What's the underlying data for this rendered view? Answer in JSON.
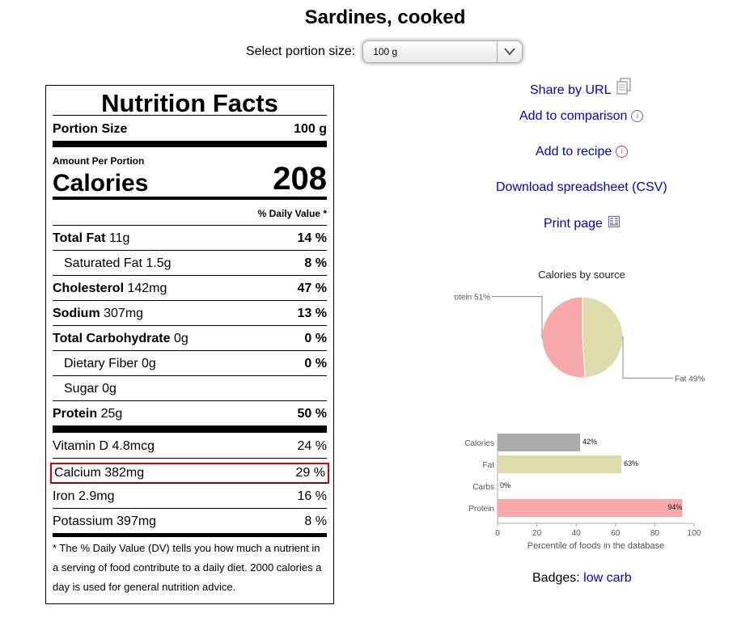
{
  "title": "Sardines, cooked",
  "portion": {
    "label": "Select portion size:",
    "value": "100 g"
  },
  "facts": {
    "heading": "Nutrition Facts",
    "portion_label": "Portion Size",
    "portion_value": "100 g",
    "amount_per": "Amount Per Portion",
    "calories_label": "Calories",
    "calories_value": "208",
    "dv_header": "% Daily Value *",
    "rows": [
      {
        "name": "Total Fat",
        "amount": "11g",
        "dv": "14 %"
      },
      {
        "name": "Saturated Fat",
        "amount": "1.5g",
        "dv": "8 %"
      },
      {
        "name": "Cholesterol",
        "amount": "142mg",
        "dv": "47 %"
      },
      {
        "name": "Sodium",
        "amount": "307mg",
        "dv": "13 %"
      },
      {
        "name": "Total Carbohydrate",
        "amount": "0g",
        "dv": "0 %"
      },
      {
        "name": "Dietary Fiber",
        "amount": "0g",
        "dv": "0 %"
      },
      {
        "name": "Sugar",
        "amount": "0g",
        "dv": ""
      },
      {
        "name": "Protein",
        "amount": "25g",
        "dv": "50 %"
      }
    ],
    "vitamins": [
      {
        "text": "Vitamin D 4.8mcg",
        "dv": "24 %"
      },
      {
        "text": "Calcium 382mg",
        "dv": "29 %"
      },
      {
        "text": "Iron 2.9mg",
        "dv": "16 %"
      },
      {
        "text": "Potassium 397mg",
        "dv": "8 %"
      }
    ],
    "footnote": "* The % Daily Value (DV) tells you how much a nutrient in a serving of food contribute to a daily diet. 2000 calories a day is used for general nutrition advice."
  },
  "links": {
    "share": "Share by URL",
    "compare": "Add to comparison",
    "recipe": "Add to recipe",
    "csv": "Download spreadsheet (CSV)",
    "print": "Print page"
  },
  "badges": {
    "label": "Badges:",
    "value": "low carb"
  },
  "chart_data": [
    {
      "type": "pie",
      "title": "Calories by source",
      "slices": [
        {
          "name": "Protein",
          "value": 51,
          "label": "Protein 51%",
          "color": "#f7a8a8"
        },
        {
          "name": "Fat",
          "value": 49,
          "label": "Fat 49%",
          "color": "#dedcaa"
        }
      ]
    },
    {
      "type": "bar",
      "orientation": "horizontal",
      "categories": [
        "Calories",
        "Fat",
        "Carbs",
        "Protein"
      ],
      "values": [
        42,
        63,
        0,
        94
      ],
      "value_labels": [
        "42%",
        "63%",
        "0%",
        "94%"
      ],
      "colors": [
        "#aaaaaa",
        "#dedcaa",
        "#dedcaa",
        "#f7a8a8"
      ],
      "xlabel": "Percentile of foods in the database",
      "xlim": [
        0,
        100
      ],
      "xticks": [
        "0",
        "20",
        "40",
        "60",
        "80",
        "100"
      ]
    }
  ]
}
